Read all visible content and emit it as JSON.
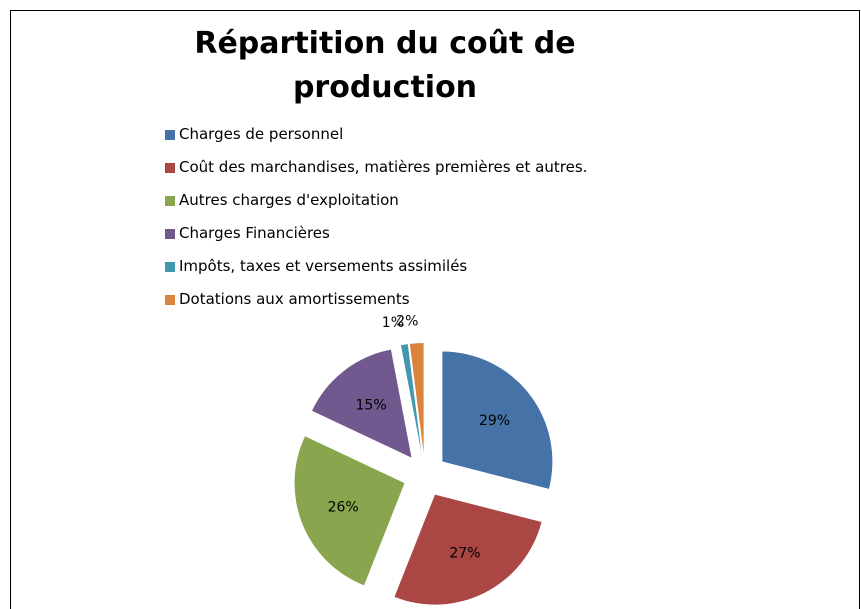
{
  "chart_data": {
    "type": "pie",
    "title": "Répartition du coût de production",
    "categories": [
      "Charges de personnel",
      "Coût des marchandises,  matières premières et autres.",
      "Autres charges d'exploitation",
      "Charges Financières",
      "Impôts, taxes et versements assimilés",
      "Dotations aux amortissements"
    ],
    "values": [
      29,
      27,
      26,
      15,
      1,
      2
    ],
    "value_labels": [
      "29%",
      "27%",
      "26%",
      "15%",
      "1%",
      "2%"
    ],
    "colors": [
      "#4572a7",
      "#aa4643",
      "#89a54e",
      "#71588f",
      "#4198af",
      "#db843d"
    ]
  }
}
